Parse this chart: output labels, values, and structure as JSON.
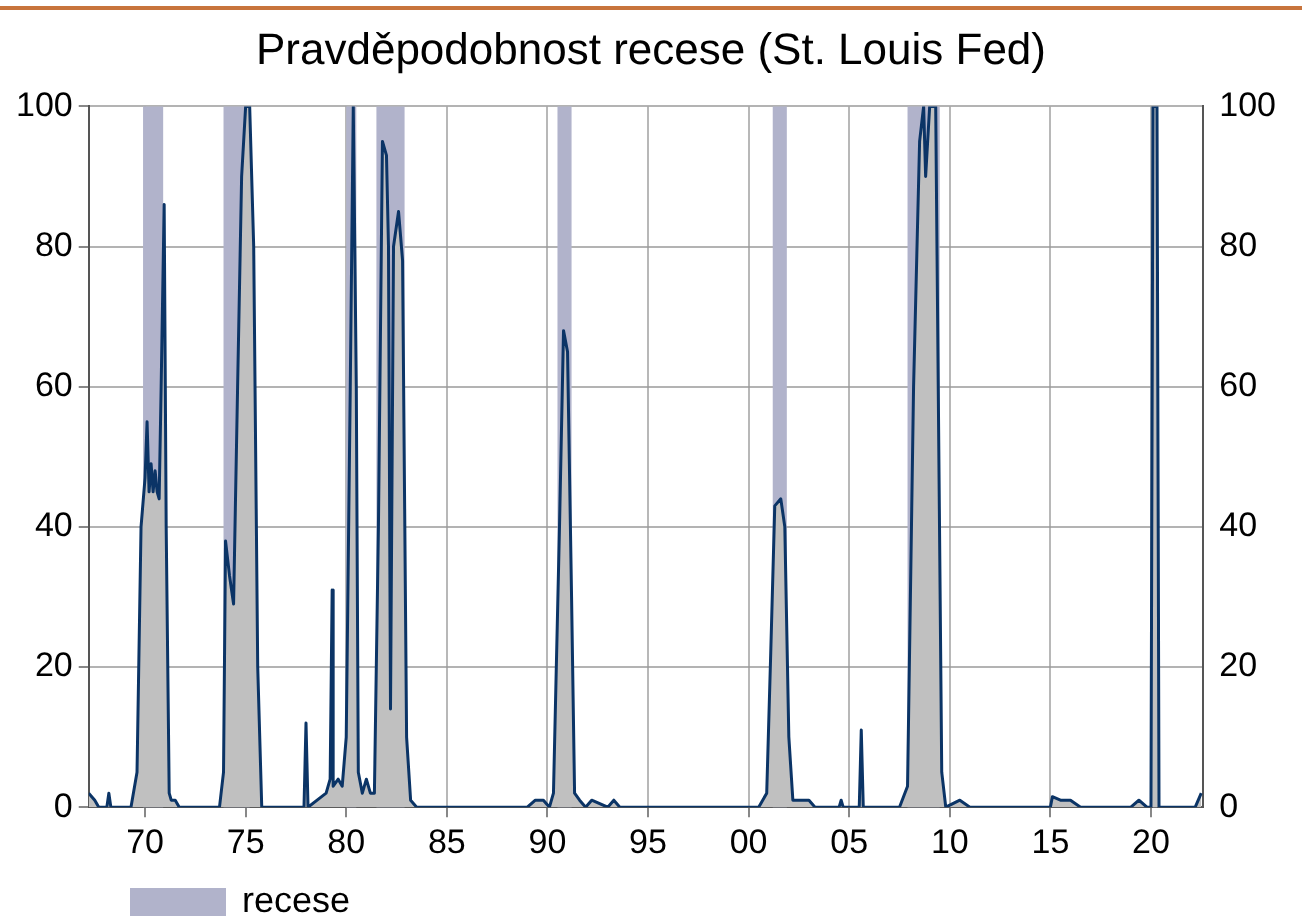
{
  "chart_data": {
    "type": "area",
    "title": "Pravděpodobnost recese (St. Louis Fed)",
    "xlim": [
      1967.2,
      2022.6
    ],
    "xticks": [
      {
        "value": 1970,
        "label": "70"
      },
      {
        "value": 1975,
        "label": "75"
      },
      {
        "value": 1980,
        "label": "80"
      },
      {
        "value": 1985,
        "label": "85"
      },
      {
        "value": 1990,
        "label": "90"
      },
      {
        "value": 1995,
        "label": "95"
      },
      {
        "value": 2000,
        "label": "00"
      },
      {
        "value": 2005,
        "label": "05"
      },
      {
        "value": 2010,
        "label": "10"
      },
      {
        "value": 2015,
        "label": "15"
      },
      {
        "value": 2020,
        "label": "20"
      }
    ],
    "ylim": [
      0,
      100
    ],
    "yticks": [
      0,
      20,
      40,
      60,
      80,
      100
    ],
    "y2lim": [
      0,
      100
    ],
    "y2ticks": [
      0,
      20,
      40,
      60,
      80,
      100
    ],
    "grid": true,
    "legend": "bottom left",
    "marker": "none",
    "line_style": "solid",
    "series": [
      {
        "color": "#0b3466",
        "x": [
          1967.2,
          1967.5,
          1967.7,
          1968.1,
          1968.2,
          1968.3,
          1969.3,
          1969.6,
          1969.8,
          1970.0,
          1970.1,
          1970.2,
          1970.3,
          1970.4,
          1970.5,
          1970.6,
          1970.7,
          1970.8,
          1970.95,
          1971.05,
          1971.2,
          1971.3,
          1971.5,
          1971.7,
          1973.7,
          1973.9,
          1974.0,
          1974.2,
          1974.4,
          1974.6,
          1974.8,
          1975.0,
          1975.2,
          1975.4,
          1975.6,
          1975.8,
          1977.9,
          1978.0,
          1978.1,
          1979.0,
          1979.2,
          1979.3,
          1979.35,
          1979.6,
          1979.8,
          1980.0,
          1980.2,
          1980.35,
          1980.5,
          1980.6,
          1980.8,
          1981.0,
          1981.2,
          1981.4,
          1981.6,
          1981.8,
          1982.0,
          1982.1,
          1982.2,
          1982.35,
          1982.6,
          1982.8,
          1983.0,
          1983.2,
          1983.5,
          1989.0,
          1989.4,
          1989.8,
          1990.1,
          1990.3,
          1990.6,
          1990.8,
          1991.0,
          1991.2,
          1991.35,
          1991.6,
          1991.9,
          1992.2,
          1993.0,
          1993.3,
          1993.6,
          2000.5,
          2000.9,
          2001.1,
          2001.3,
          2001.6,
          2001.8,
          2002.0,
          2002.2,
          2002.5,
          2003.0,
          2003.3,
          2004.5,
          2004.6,
          2004.7,
          2005.5,
          2005.6,
          2005.7,
          2007.5,
          2007.9,
          2008.2,
          2008.5,
          2008.7,
          2008.8,
          2009.0,
          2009.3,
          2009.6,
          2009.8,
          2010.5,
          2011.0,
          2015.0,
          2015.1,
          2015.5,
          2016.0,
          2016.5,
          2019.0,
          2019.4,
          2019.8,
          2020.0,
          2020.1,
          2020.3,
          2020.4,
          2021.0,
          2022.2,
          2022.5
        ],
        "values": [
          2,
          1,
          0,
          0,
          2,
          0,
          0,
          5,
          40,
          47,
          55,
          45,
          49,
          45,
          48,
          45,
          44,
          60,
          86,
          40,
          2,
          1,
          1,
          0,
          0,
          5,
          38,
          33,
          29,
          60,
          90,
          100,
          100,
          80,
          20,
          0,
          0,
          12,
          0,
          2,
          4,
          31,
          3,
          4,
          3,
          10,
          60,
          100,
          60,
          5,
          2,
          4,
          2,
          2,
          40,
          95,
          93,
          80,
          14,
          80,
          85,
          78,
          10,
          1,
          0,
          0,
          1,
          1,
          0,
          2,
          40,
          68,
          65,
          30,
          2,
          1,
          0,
          1,
          0,
          1,
          0,
          0,
          2,
          22,
          43,
          44,
          40,
          10,
          1,
          1,
          1,
          0,
          0,
          1,
          0,
          0,
          11,
          0,
          0,
          3,
          60,
          95,
          100,
          90,
          100,
          100,
          5,
          0,
          1,
          0,
          0,
          1.5,
          1,
          1,
          0,
          0,
          1,
          0,
          0,
          100,
          100,
          0,
          0,
          0,
          2
        ]
      }
    ],
    "bands": [
      {
        "axis": "x",
        "from": 1969.9,
        "to": 1970.9,
        "label": "recese",
        "color": "#b1b3cb"
      },
      {
        "axis": "x",
        "from": 1973.9,
        "to": 1975.2,
        "color": "#b1b3cb"
      },
      {
        "axis": "x",
        "from": 1980.0,
        "to": 1980.5,
        "color": "#b1b3cb"
      },
      {
        "axis": "x",
        "from": 1981.5,
        "to": 1982.9,
        "color": "#b1b3cb"
      },
      {
        "axis": "x",
        "from": 1990.5,
        "to": 1991.2,
        "color": "#b1b3cb"
      },
      {
        "axis": "x",
        "from": 2001.2,
        "to": 2001.9,
        "color": "#b1b3cb"
      },
      {
        "axis": "x",
        "from": 2007.9,
        "to": 2009.5,
        "color": "#b1b3cb"
      },
      {
        "axis": "x",
        "from": 2020.1,
        "to": 2020.3,
        "color": "#b1b3cb"
      }
    ]
  }
}
